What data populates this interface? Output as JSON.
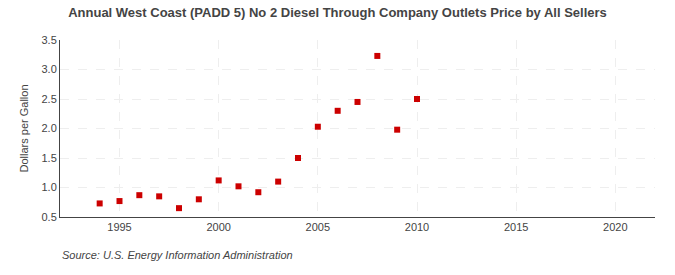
{
  "chart_data": {
    "type": "scatter",
    "title": "Annual West Coast (PADD 5) No 2 Diesel Through Company Outlets Price by All Sellers",
    "ylabel": "Dollars per Gallon",
    "annotations": [
      "Source: U.S. Energy Information Administration"
    ],
    "x": [
      1994,
      1995,
      1996,
      1997,
      1998,
      1999,
      2000,
      2001,
      2002,
      2003,
      2004,
      2005,
      2006,
      2007,
      2008,
      2009,
      2010
    ],
    "values": [
      0.73,
      0.77,
      0.87,
      0.85,
      0.65,
      0.8,
      1.12,
      1.02,
      0.92,
      1.1,
      1.5,
      2.03,
      2.3,
      2.45,
      3.23,
      1.98,
      2.5
    ],
    "color": "#cc0000",
    "marker": "square",
    "xlim": [
      1992,
      2022
    ],
    "ylim": [
      0.5,
      3.5
    ],
    "xticks": [
      1995,
      2000,
      2005,
      2010,
      2015,
      2020
    ],
    "yticks": [
      0.5,
      {
        "value": 1,
        "label": "1.0"
      },
      1.5,
      {
        "value": 2,
        "label": "2.0"
      },
      2.5,
      {
        "value": 3,
        "label": "3.0"
      },
      3.5
    ],
    "grid": true
  }
}
